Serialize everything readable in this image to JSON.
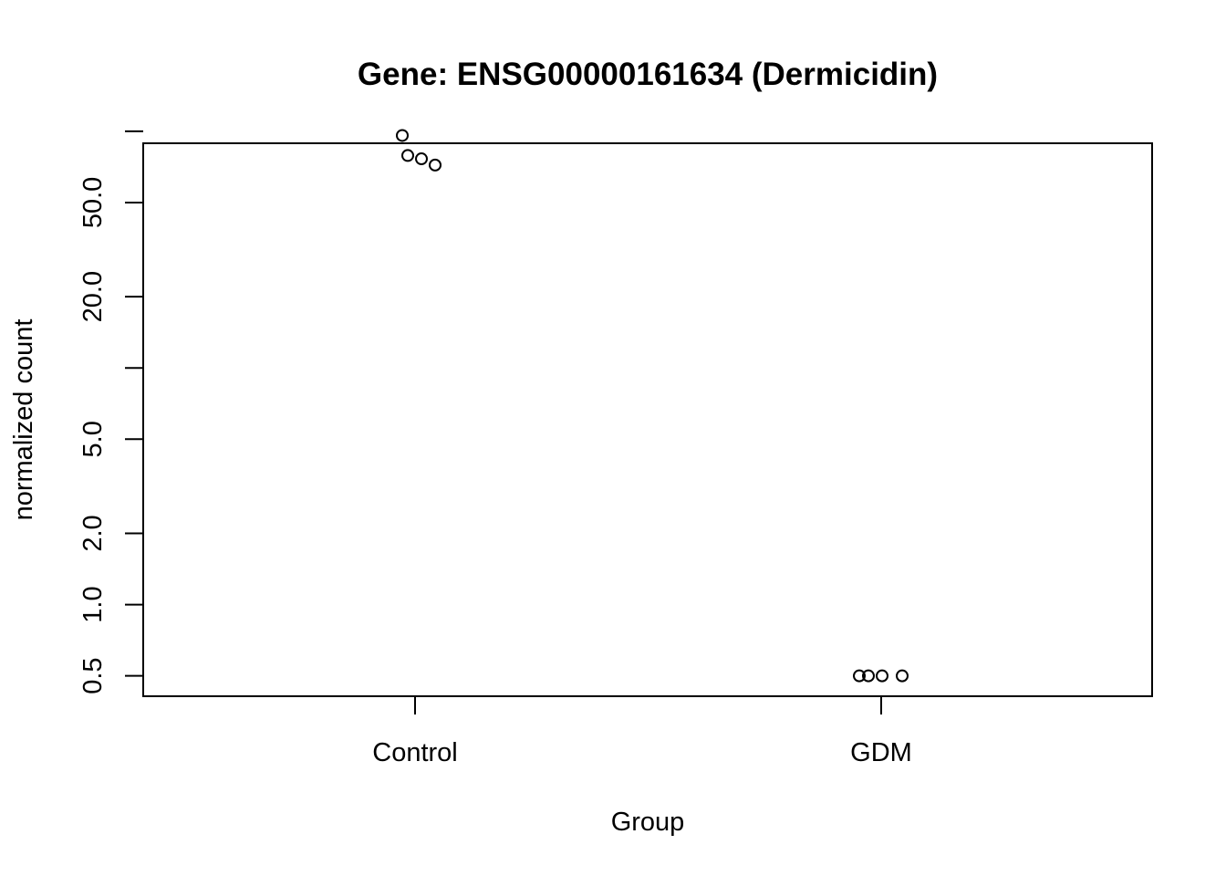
{
  "chart_data": {
    "type": "scatter",
    "title": "Gene: ENSG00000161634 (Dermicidin)",
    "xlabel": "Group",
    "ylabel": "normalized count",
    "y_scale": "log",
    "ylim": [
      0.41,
      89
    ],
    "categories": [
      "Control",
      "GDM"
    ],
    "y_ticks": [
      0.5,
      1.0,
      2.0,
      5.0,
      10,
      20.0,
      50.0,
      100
    ],
    "y_tick_labels": [
      "0.5",
      "1.0",
      "2.0",
      "5.0",
      "",
      "20.0",
      "50.0",
      ""
    ],
    "grid": false,
    "points": [
      {
        "group": "Control",
        "value": 96
      },
      {
        "group": "Control",
        "value": 79
      },
      {
        "group": "Control",
        "value": 76.5
      },
      {
        "group": "Control",
        "value": 72
      },
      {
        "group": "GDM",
        "value": 0.5
      },
      {
        "group": "GDM",
        "value": 0.5
      },
      {
        "group": "GDM",
        "value": 0.5
      },
      {
        "group": "GDM",
        "value": 0.5
      }
    ]
  }
}
